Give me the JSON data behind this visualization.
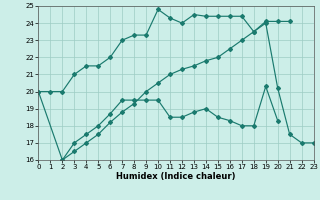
{
  "bg_color": "#cceee8",
  "line_color": "#1a7a6e",
  "xlabel": "Humidex (Indice chaleur)",
  "xlim": [
    0,
    23
  ],
  "ylim": [
    16,
    25
  ],
  "xticks": [
    0,
    1,
    2,
    3,
    4,
    5,
    6,
    7,
    8,
    9,
    10,
    11,
    12,
    13,
    14,
    15,
    16,
    17,
    18,
    19,
    20,
    21,
    22,
    23
  ],
  "yticks": [
    16,
    17,
    18,
    19,
    20,
    21,
    22,
    23,
    24,
    25
  ],
  "s1_x": [
    0,
    1,
    2,
    3,
    4,
    5,
    6,
    7,
    8,
    9,
    10,
    11,
    12,
    13,
    14,
    15,
    16,
    17,
    18,
    19,
    20,
    21
  ],
  "s1_y": [
    20,
    20,
    20,
    21,
    21.5,
    21.5,
    22.0,
    23.0,
    23.3,
    23.3,
    24.8,
    24.3,
    24.0,
    24.5,
    24.4,
    24.4,
    24.4,
    24.4,
    23.5,
    24.1,
    24.1,
    24.1
  ],
  "s2_x": [
    0,
    2,
    3,
    4,
    5,
    6,
    7,
    8,
    9,
    10,
    11,
    12,
    13,
    14,
    15,
    16,
    17,
    18,
    19,
    20
  ],
  "s2_y": [
    20,
    16,
    17,
    17.5,
    18.0,
    18.7,
    19.5,
    19.5,
    19.5,
    19.5,
    18.5,
    18.5,
    18.8,
    19.0,
    18.5,
    18.3,
    18.0,
    18.0,
    20.3,
    18.3
  ],
  "s3_x": [
    2,
    3,
    4,
    5,
    6,
    7,
    8,
    9,
    10,
    11,
    12,
    13,
    14,
    15,
    16,
    17,
    18,
    19,
    20,
    21,
    22,
    23
  ],
  "s3_y": [
    16.0,
    16.5,
    17.0,
    17.5,
    18.2,
    18.8,
    19.3,
    20.0,
    20.5,
    21.0,
    21.3,
    21.5,
    21.8,
    22.0,
    22.5,
    23.0,
    23.5,
    24.0,
    20.2,
    17.5,
    17.0,
    17.0
  ]
}
